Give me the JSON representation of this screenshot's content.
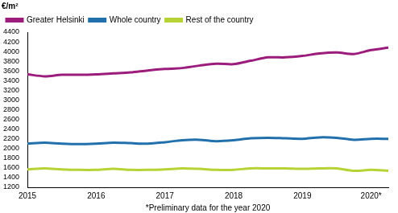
{
  "chart_data": {
    "type": "line",
    "y_label": "€/m²",
    "x_label": "*Preliminary data for the year 2020",
    "categories": [
      "2015",
      null,
      null,
      null,
      "2016",
      null,
      null,
      null,
      "2017",
      null,
      null,
      null,
      "2018",
      null,
      null,
      null,
      "2019",
      null,
      null,
      null,
      "2020*",
      null
    ],
    "series": [
      {
        "name": "Greater Helsinki",
        "color": "#9c1c7c",
        "values": [
          3530,
          3490,
          3520,
          3520,
          3530,
          3550,
          3570,
          3610,
          3640,
          3660,
          3710,
          3750,
          3740,
          3810,
          3880,
          3880,
          3910,
          3960,
          3980,
          3950,
          4030,
          4080
        ]
      },
      {
        "name": "Whole country",
        "color": "#2170ab",
        "values": [
          2100,
          2120,
          2100,
          2090,
          2100,
          2120,
          2110,
          2100,
          2130,
          2170,
          2180,
          2150,
          2170,
          2210,
          2220,
          2210,
          2200,
          2230,
          2220,
          2180,
          2200,
          2200
        ]
      },
      {
        "name": "Rest of the country",
        "color": "#b5d334",
        "values": [
          1570,
          1590,
          1570,
          1560,
          1560,
          1580,
          1560,
          1560,
          1570,
          1590,
          1580,
          1560,
          1560,
          1590,
          1590,
          1590,
          1580,
          1590,
          1590,
          1540,
          1560,
          1540
        ]
      }
    ],
    "ylim": [
      1200,
      4400
    ],
    "yticks": [
      1200,
      1400,
      1600,
      1800,
      2000,
      2200,
      2400,
      2600,
      2800,
      3000,
      3200,
      3400,
      3600,
      3800,
      4000,
      4200,
      4400
    ],
    "grid": false,
    "legend": "upper left"
  }
}
